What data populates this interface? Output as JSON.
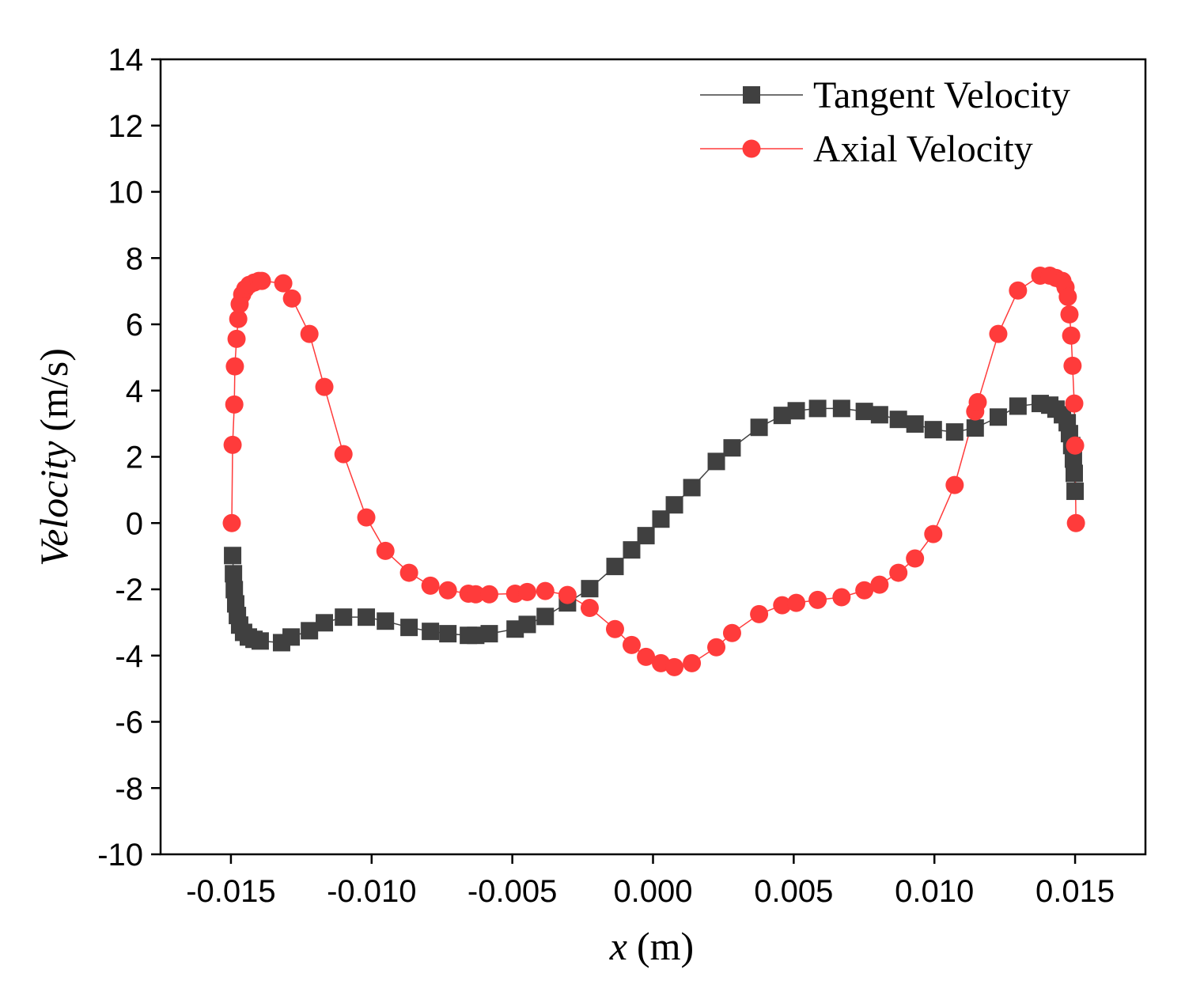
{
  "chart_data": {
    "type": "line",
    "xlabel": {
      "italic": "x",
      "rest": "(m)"
    },
    "ylabel": {
      "italic": "Velocity",
      "rest": "(m/s)"
    },
    "xlim": [
      -0.0175,
      0.0175
    ],
    "ylim": [
      -10,
      14
    ],
    "xticks": [
      -0.015,
      {
        "value": -0.01,
        "label": "-0.010"
      },
      -0.005,
      {
        "value": 0,
        "label": "0.000"
      },
      0.005,
      {
        "value": 0.01,
        "label": "0.010"
      },
      0.015
    ],
    "yticks": [
      -10,
      -8,
      -6,
      -4,
      -2,
      0,
      2,
      4,
      6,
      8,
      10,
      12,
      14
    ],
    "legend": "upper right",
    "series": [
      {
        "name": "Tangent Velocity",
        "color": "#404040",
        "marker": "square",
        "x": [
          -0.01494,
          -0.01491,
          -0.01488,
          -0.01483,
          -0.01477,
          -0.01469,
          -0.01455,
          -0.01438,
          -0.01418,
          -0.01396,
          -0.0132,
          -0.01286,
          -0.01221,
          -0.01168,
          -0.011,
          -0.01019,
          -0.00951,
          -0.00867,
          -0.00791,
          -0.00729,
          -0.00656,
          -0.0063,
          -0.00582,
          -0.0049,
          -0.00447,
          -0.00383,
          -0.00304,
          -0.00225,
          -0.00135,
          -0.00076,
          -0.00025,
          0.00028,
          0.00076,
          0.00138,
          0.00225,
          0.00281,
          0.00377,
          0.00459,
          0.00509,
          0.00585,
          0.0067,
          0.00751,
          0.00805,
          0.00872,
          0.00931,
          0.00996,
          0.01072,
          0.01145,
          0.01227,
          0.01297,
          0.01376,
          0.0141,
          0.01432,
          0.01455,
          0.01472,
          0.0148,
          0.01488,
          0.01494,
          0.01497,
          0.015
        ],
        "values": [
          -0.98,
          -1.53,
          -2.01,
          -2.44,
          -2.79,
          -3.08,
          -3.3,
          -3.44,
          -3.51,
          -3.56,
          -3.61,
          -3.44,
          -3.25,
          -3.01,
          -2.84,
          -2.84,
          -2.96,
          -3.15,
          -3.27,
          -3.34,
          -3.39,
          -3.39,
          -3.34,
          -3.2,
          -3.06,
          -2.82,
          -2.41,
          -1.98,
          -1.31,
          -0.81,
          -0.38,
          0.12,
          0.55,
          1.07,
          1.86,
          2.27,
          2.89,
          3.25,
          3.39,
          3.46,
          3.46,
          3.37,
          3.27,
          3.13,
          2.99,
          2.82,
          2.75,
          2.87,
          3.2,
          3.53,
          3.61,
          3.56,
          3.44,
          3.27,
          3.03,
          2.7,
          2.34,
          1.93,
          1.5,
          0.96
        ]
      },
      {
        "name": "Axial Velocity",
        "color": "#ff3b3b",
        "marker": "circle",
        "x": [
          -0.01497,
          -0.01494,
          -0.01488,
          -0.01486,
          -0.0148,
          -0.01474,
          -0.01469,
          -0.0146,
          -0.01449,
          -0.01435,
          -0.01418,
          -0.01401,
          -0.0139,
          -0.01314,
          -0.01283,
          -0.01221,
          -0.01168,
          -0.011,
          -0.01019,
          -0.00951,
          -0.00867,
          -0.00791,
          -0.00729,
          -0.00656,
          -0.0063,
          -0.00582,
          -0.0049,
          -0.00447,
          -0.00383,
          -0.00304,
          -0.00225,
          -0.00135,
          -0.00076,
          -0.00025,
          0.00028,
          0.00076,
          0.00138,
          0.00225,
          0.00281,
          0.00377,
          0.00459,
          0.00509,
          0.00585,
          0.0067,
          0.00751,
          0.00805,
          0.00872,
          0.00931,
          0.00996,
          0.01072,
          0.01145,
          0.01154,
          0.01227,
          0.01297,
          0.01376,
          0.0141,
          0.01432,
          0.01455,
          0.01466,
          0.01474,
          0.0148,
          0.01486,
          0.01491,
          0.01497,
          0.015,
          0.01503
        ],
        "values": [
          0,
          2.36,
          3.58,
          4.73,
          5.56,
          6.16,
          6.61,
          6.9,
          7.07,
          7.19,
          7.26,
          7.31,
          7.31,
          7.24,
          6.78,
          5.71,
          4.11,
          2.08,
          0.17,
          -0.84,
          -1.5,
          -1.89,
          -2.03,
          -2.13,
          -2.15,
          -2.15,
          -2.13,
          -2.08,
          -2.05,
          -2.17,
          -2.56,
          -3.2,
          -3.68,
          -4.04,
          -4.23,
          -4.35,
          -4.23,
          -3.75,
          -3.32,
          -2.75,
          -2.48,
          -2.41,
          -2.32,
          -2.24,
          -2.03,
          -1.86,
          -1.5,
          -1.07,
          -0.33,
          1.15,
          3.37,
          3.65,
          5.71,
          7.02,
          7.47,
          7.47,
          7.4,
          7.31,
          7.12,
          6.83,
          6.3,
          5.66,
          4.75,
          3.61,
          2.34,
          0
        ]
      }
    ]
  }
}
